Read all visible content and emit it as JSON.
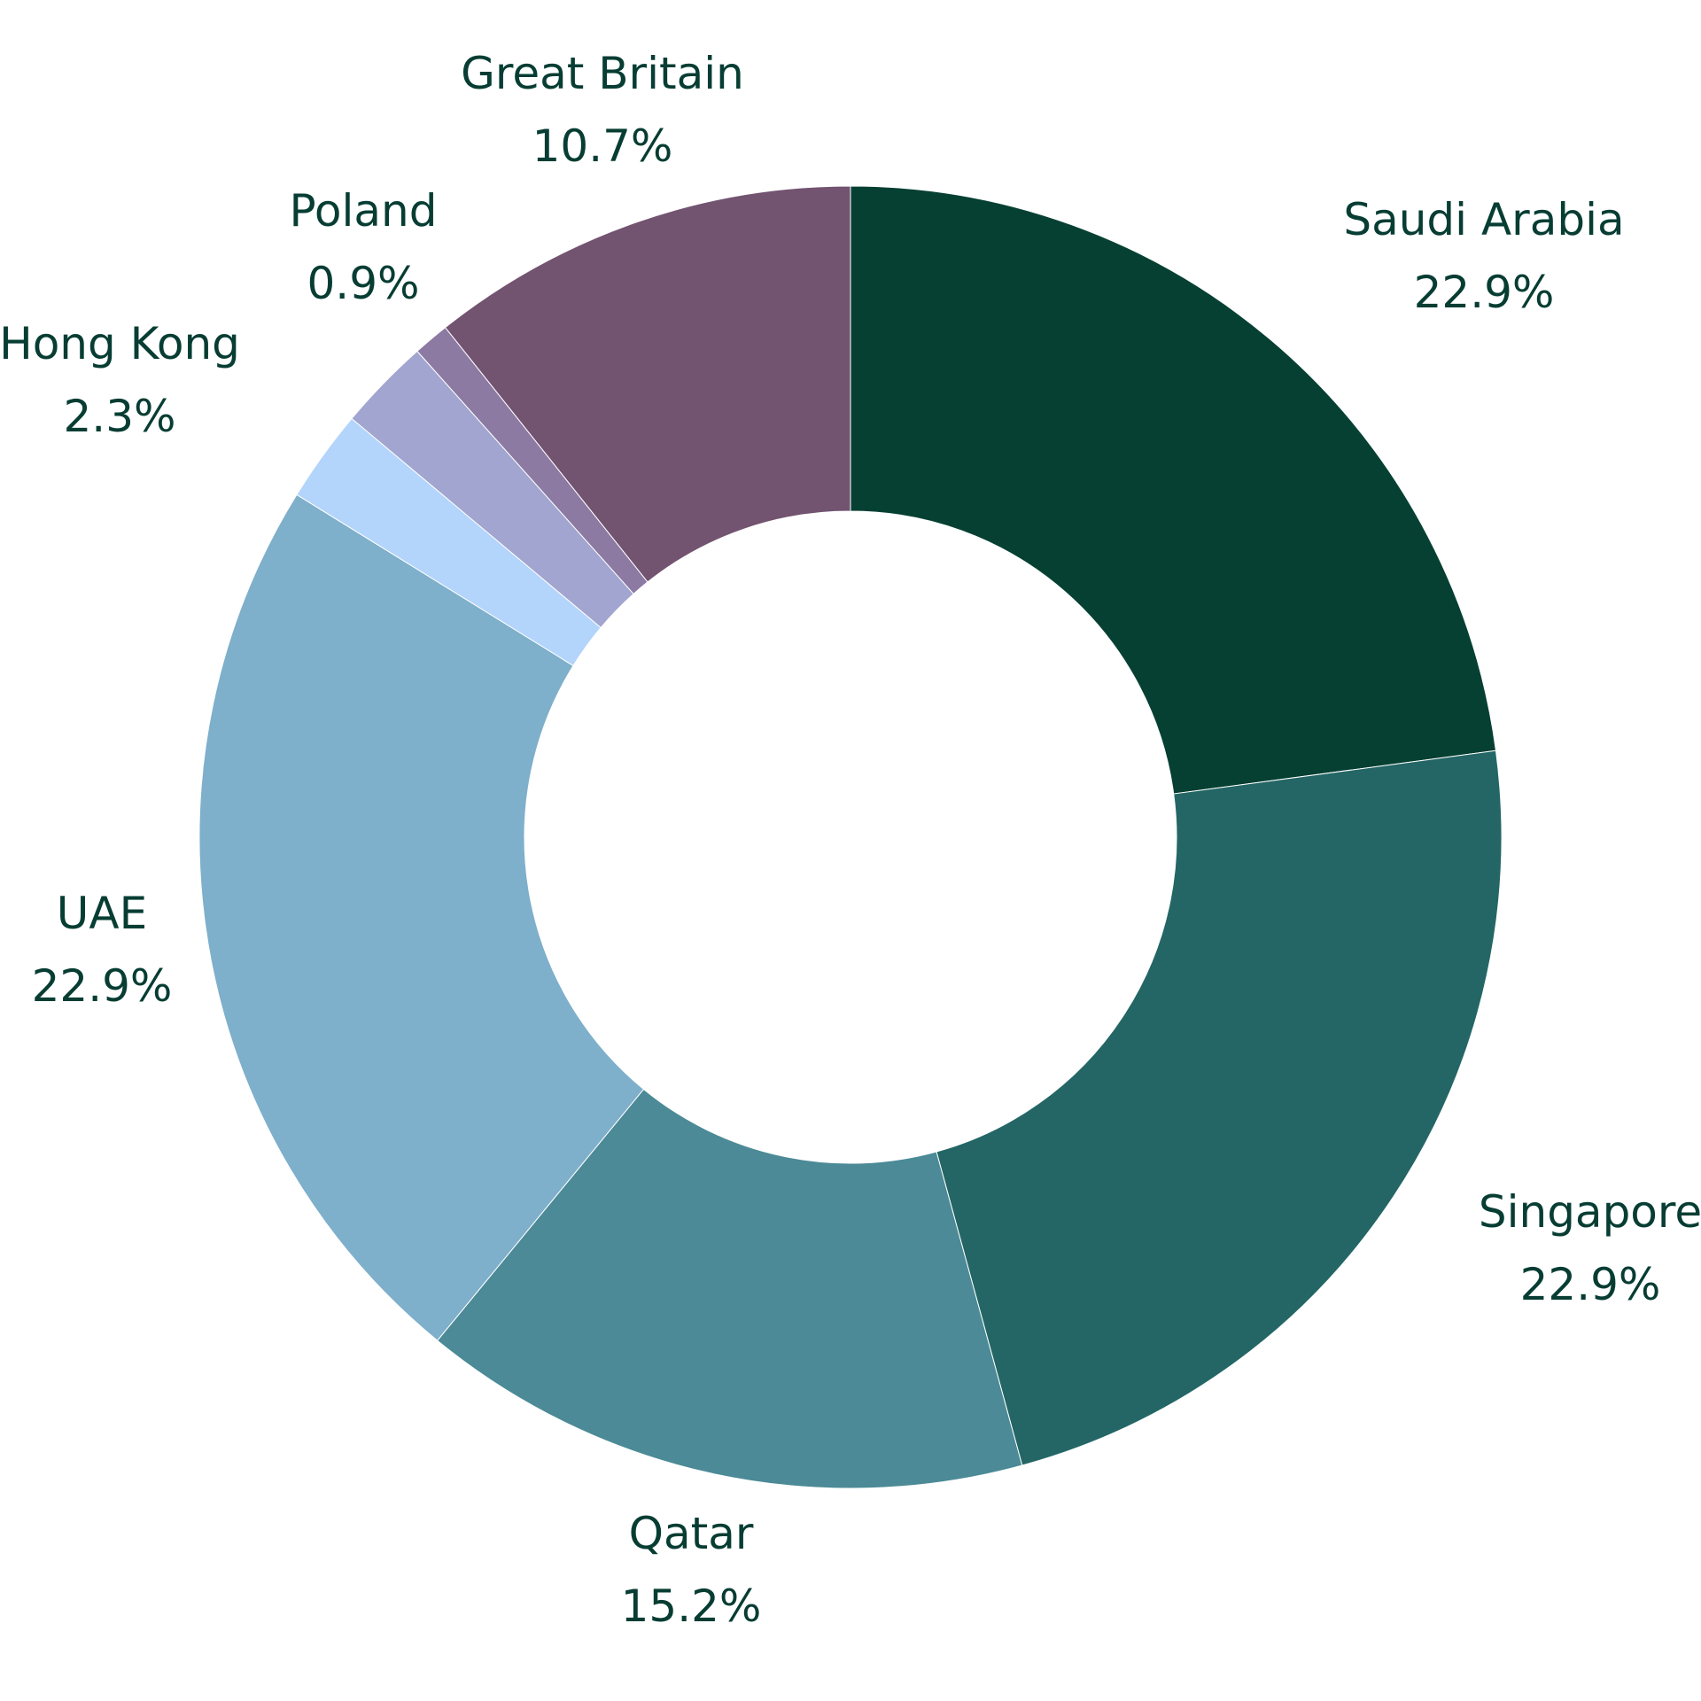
{
  "chart_data": {
    "type": "pie",
    "donut": true,
    "slices": [
      {
        "label": "Saudi Arabia",
        "value": 22.9,
        "display": "22.9%",
        "color": "#064033"
      },
      {
        "label": "Singapore",
        "value": 22.9,
        "display": "22.9%",
        "color": "#236665"
      },
      {
        "label": "Qatar",
        "value": 15.2,
        "display": "15.2%",
        "color": "#4b8a96"
      },
      {
        "label": "UAE",
        "value": 22.9,
        "display": "22.9%",
        "color": "#7eafcb"
      },
      {
        "label": "Hong Kong",
        "value": 2.3,
        "display": "2.3%",
        "color": "#b3d4fb"
      },
      {
        "label": "",
        "value": 2.3,
        "display": "",
        "color": "#a1a5cf"
      },
      {
        "label": "Poland",
        "value": 0.9,
        "display": "0.9%",
        "color": "#8c7aa3"
      },
      {
        "label": "Great Britain",
        "value": 10.7,
        "display": "10.7%",
        "color": "#725370"
      }
    ],
    "start_angle_deg": 0,
    "direction": "clockwise"
  }
}
